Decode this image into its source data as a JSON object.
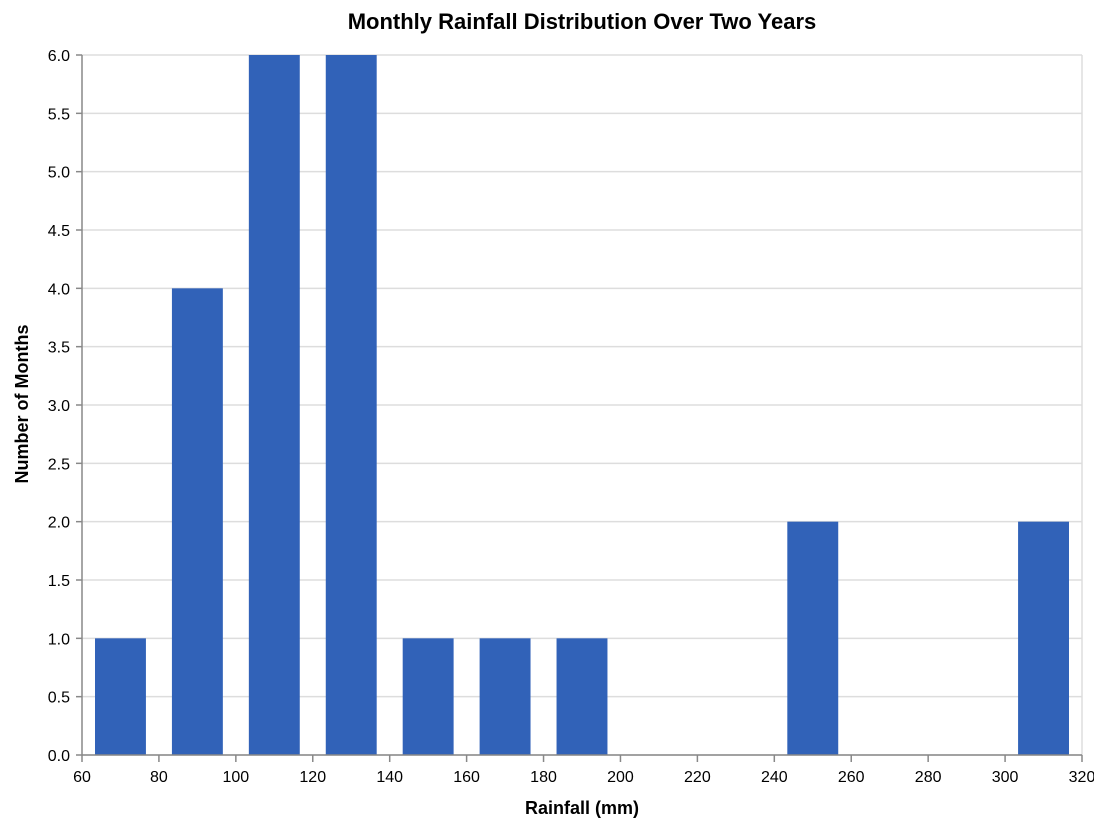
{
  "chart_data": {
    "type": "bar",
    "title": "Monthly Rainfall Distribution Over Two Years",
    "xlabel": "Rainfall (mm)",
    "ylabel": "Number of Months",
    "xlim": [
      60,
      320
    ],
    "ylim": [
      0,
      6
    ],
    "x_ticks": [
      "60",
      "80",
      "100",
      "120",
      "140",
      "160",
      "180",
      "200",
      "220",
      "240",
      "260",
      "280",
      "300",
      "320"
    ],
    "y_ticks": [
      "0.0",
      "0.5",
      "1.0",
      "1.5",
      "2.0",
      "2.5",
      "3.0",
      "3.5",
      "4.0",
      "4.5",
      "5.0",
      "5.5",
      "6.0"
    ],
    "grid": true,
    "bar_color": "#3162b8",
    "bins": [
      {
        "x0": 60,
        "x1": 80,
        "count": 1
      },
      {
        "x0": 80,
        "x1": 100,
        "count": 4
      },
      {
        "x0": 100,
        "x1": 120,
        "count": 6
      },
      {
        "x0": 120,
        "x1": 140,
        "count": 6
      },
      {
        "x0": 140,
        "x1": 160,
        "count": 1
      },
      {
        "x0": 160,
        "x1": 180,
        "count": 1
      },
      {
        "x0": 180,
        "x1": 200,
        "count": 1
      },
      {
        "x0": 240,
        "x1": 260,
        "count": 2
      },
      {
        "x0": 300,
        "x1": 320,
        "count": 2
      }
    ]
  }
}
